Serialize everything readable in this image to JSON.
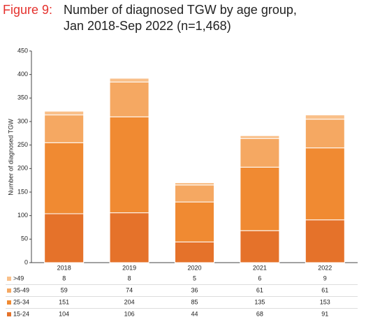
{
  "chart_data": {
    "type": "stacked_bar",
    "title_label": "Figure 9:",
    "title_lines": [
      "Number of diagnosed TGW by age group,",
      "Jan 2018-Sep 2022 (n=1,468)"
    ],
    "y_label": "Number of diagnosed TGW",
    "categories": [
      "2018",
      "2019",
      "2020",
      "2021",
      "2022"
    ],
    "series": [
      {
        "name": ">49",
        "color": "#f9c08a",
        "values": [
          8,
          8,
          5,
          6,
          9
        ]
      },
      {
        "name": "35-49",
        "color": "#f5a862",
        "values": [
          59,
          74,
          36,
          61,
          61
        ]
      },
      {
        "name": "25-34",
        "color": "#f08a32",
        "values": [
          151,
          204,
          85,
          135,
          153
        ]
      },
      {
        "name": "15-24",
        "color": "#e5722a",
        "values": [
          104,
          106,
          44,
          68,
          91
        ]
      }
    ],
    "ylim": [
      0,
      450
    ],
    "yticks": [
      0,
      50,
      100,
      150,
      200,
      250,
      300,
      350,
      400,
      450
    ],
    "grid": false
  }
}
